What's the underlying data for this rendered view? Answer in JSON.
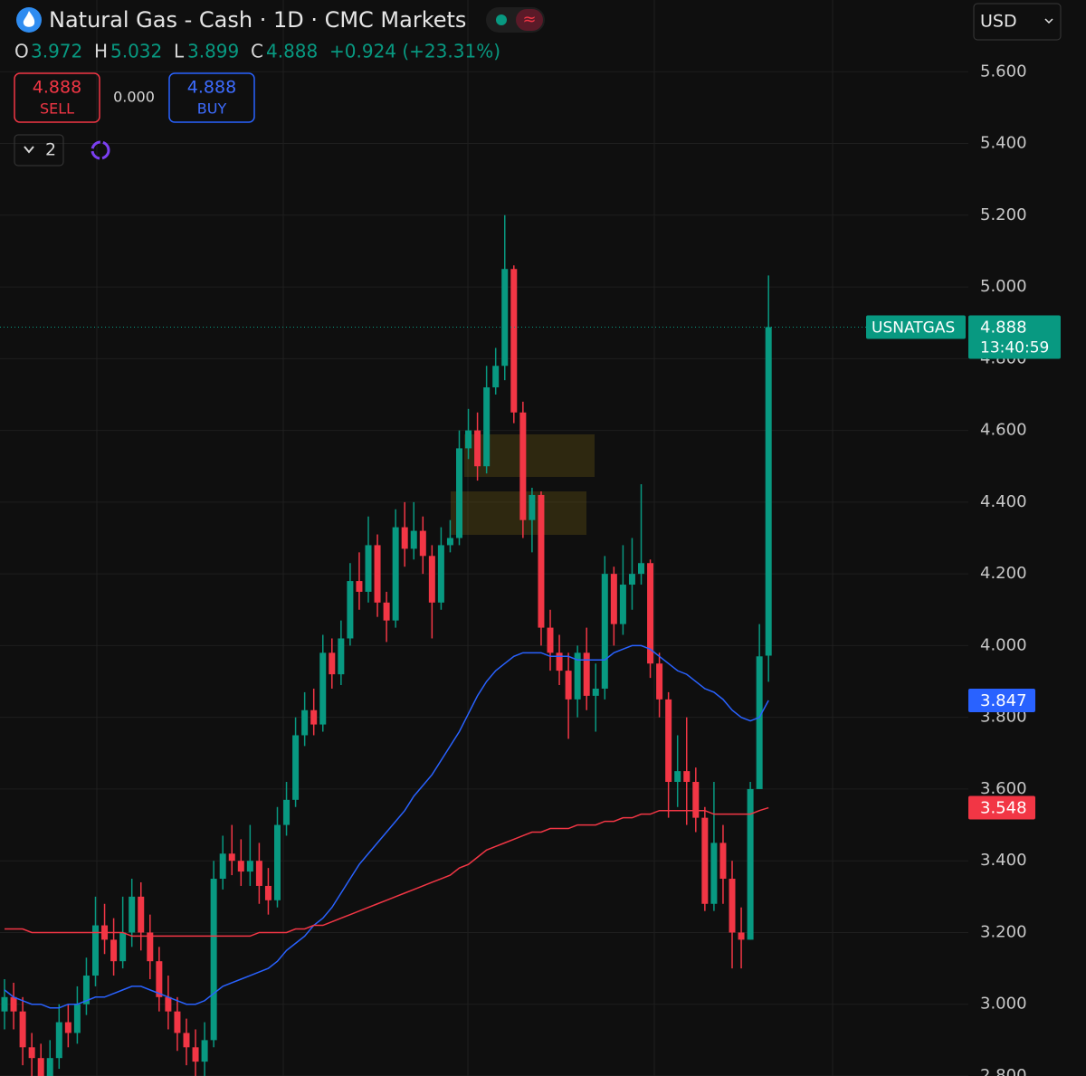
{
  "header": {
    "title": "Natural Gas - Cash · 1D · CMC Markets",
    "ohlc_labels": [
      "O",
      "H",
      "L",
      "C"
    ],
    "change": "+0.924 (+23.31%)",
    "sell": 4.888,
    "sell_label": "SELL",
    "spread": "0.000",
    "buy": 4.888,
    "buy_label": "BUY",
    "indicator_count": 2,
    "currency": "USD"
  },
  "chart_data": {
    "type": "candlestick",
    "symbol": "USNATGAS",
    "countdown": "13:40:59",
    "up_color": "#089981",
    "down_color": "#f23645",
    "open": [
      2.98,
      3.02,
      2.98,
      2.88,
      2.85,
      2.8,
      2.85,
      2.95,
      2.92,
      3.0,
      3.08,
      3.22,
      3.18,
      3.12,
      3.2,
      3.3,
      3.2,
      3.12,
      3.02,
      2.98,
      2.92,
      2.88,
      2.84,
      2.9,
      3.35,
      3.42,
      3.4,
      3.37,
      3.4,
      3.33,
      3.29,
      3.5,
      3.57,
      3.75,
      3.82,
      3.78,
      3.98,
      3.92,
      4.02,
      4.18,
      4.15,
      4.28,
      4.12,
      4.07,
      4.33,
      4.27,
      4.32,
      4.25,
      4.12,
      4.28,
      4.3,
      4.55,
      4.6,
      4.5,
      4.72,
      4.78,
      5.05,
      4.65,
      4.35,
      4.42,
      4.05,
      3.98,
      3.93,
      3.85,
      3.98,
      3.86,
      3.88,
      4.2,
      4.06,
      4.17,
      4.2,
      4.23,
      3.95,
      3.85,
      3.62,
      3.65,
      3.62,
      3.52,
      3.28,
      3.45,
      3.35,
      3.2,
      3.18,
      3.6,
      3.972
    ],
    "high": [
      3.07,
      3.06,
      3.02,
      2.92,
      2.89,
      2.9,
      3.0,
      3.0,
      3.05,
      3.13,
      3.3,
      3.28,
      3.24,
      3.3,
      3.35,
      3.34,
      3.25,
      3.16,
      3.08,
      3.02,
      2.96,
      2.93,
      2.95,
      3.4,
      3.47,
      3.5,
      3.46,
      3.5,
      3.45,
      3.38,
      3.55,
      3.62,
      3.8,
      3.87,
      3.88,
      4.03,
      4.02,
      4.07,
      4.23,
      4.26,
      4.36,
      4.31,
      4.15,
      4.38,
      4.4,
      4.4,
      4.36,
      4.28,
      4.33,
      4.35,
      4.6,
      4.66,
      4.65,
      4.78,
      4.83,
      5.2,
      5.06,
      4.68,
      4.44,
      4.43,
      4.1,
      4.03,
      3.98,
      4.0,
      4.05,
      3.95,
      4.25,
      4.22,
      4.28,
      4.3,
      4.45,
      4.24,
      3.98,
      3.87,
      3.75,
      3.8,
      3.66,
      3.55,
      3.62,
      3.5,
      3.4,
      3.27,
      3.62,
      4.06,
      5.032
    ],
    "low": [
      2.93,
      2.93,
      2.83,
      2.8,
      2.76,
      2.76,
      2.82,
      2.88,
      2.89,
      2.97,
      3.05,
      3.14,
      3.08,
      3.1,
      3.16,
      3.15,
      3.07,
      2.98,
      2.93,
      2.87,
      2.83,
      2.79,
      2.8,
      2.88,
      3.32,
      3.36,
      3.33,
      3.33,
      3.28,
      3.25,
      3.27,
      3.47,
      3.55,
      3.72,
      3.75,
      3.76,
      3.88,
      3.89,
      4.0,
      4.1,
      4.12,
      4.08,
      4.01,
      4.05,
      4.22,
      4.24,
      4.2,
      4.02,
      4.1,
      4.26,
      4.28,
      4.52,
      4.46,
      4.48,
      4.7,
      4.74,
      4.62,
      4.3,
      4.26,
      4.0,
      3.93,
      3.89,
      3.74,
      3.8,
      3.82,
      3.76,
      3.85,
      4.0,
      4.03,
      4.1,
      4.17,
      3.91,
      3.8,
      3.52,
      3.55,
      3.5,
      3.48,
      3.26,
      3.26,
      3.28,
      3.1,
      3.1,
      3.18,
      3.6,
      3.899
    ],
    "close": [
      3.02,
      2.98,
      2.88,
      2.85,
      2.8,
      2.85,
      2.95,
      2.92,
      3.0,
      3.08,
      3.22,
      3.18,
      3.12,
      3.2,
      3.3,
      3.2,
      3.12,
      3.02,
      2.98,
      2.92,
      2.88,
      2.84,
      2.9,
      3.35,
      3.42,
      3.4,
      3.37,
      3.4,
      3.33,
      3.29,
      3.5,
      3.57,
      3.75,
      3.82,
      3.78,
      3.98,
      3.92,
      4.02,
      4.18,
      4.15,
      4.28,
      4.12,
      4.07,
      4.33,
      4.27,
      4.32,
      4.25,
      4.12,
      4.28,
      4.3,
      4.55,
      4.6,
      4.5,
      4.72,
      4.78,
      5.05,
      4.65,
      4.35,
      4.42,
      4.05,
      3.98,
      3.93,
      3.85,
      3.98,
      3.86,
      3.88,
      4.2,
      4.06,
      4.17,
      4.2,
      4.23,
      3.95,
      3.85,
      3.62,
      3.65,
      3.62,
      3.52,
      3.28,
      3.45,
      3.35,
      3.2,
      3.18,
      3.6,
      3.97,
      4.888
    ],
    "ma_fast": {
      "color": "#2962ff",
      "values": [
        3.04,
        3.02,
        3.01,
        3.0,
        3.0,
        2.99,
        2.99,
        3.0,
        3.0,
        3.01,
        3.02,
        3.02,
        3.03,
        3.04,
        3.05,
        3.05,
        3.04,
        3.03,
        3.02,
        3.01,
        3.0,
        3.0,
        3.01,
        3.03,
        3.05,
        3.06,
        3.07,
        3.08,
        3.09,
        3.1,
        3.12,
        3.15,
        3.17,
        3.19,
        3.22,
        3.24,
        3.27,
        3.31,
        3.35,
        3.39,
        3.42,
        3.45,
        3.48,
        3.51,
        3.54,
        3.58,
        3.61,
        3.64,
        3.68,
        3.72,
        3.76,
        3.81,
        3.86,
        3.9,
        3.93,
        3.95,
        3.97,
        3.98,
        3.98,
        3.98,
        3.97,
        3.97,
        3.97,
        3.96,
        3.96,
        3.96,
        3.96,
        3.98,
        3.99,
        4.0,
        4.0,
        3.99,
        3.97,
        3.95,
        3.93,
        3.92,
        3.9,
        3.88,
        3.87,
        3.85,
        3.82,
        3.8,
        3.79,
        3.8,
        3.847
      ]
    },
    "ma_slow": {
      "color": "#f23645",
      "values": [
        3.21,
        3.21,
        3.21,
        3.2,
        3.2,
        3.2,
        3.2,
        3.2,
        3.2,
        3.2,
        3.2,
        3.2,
        3.2,
        3.2,
        3.19,
        3.19,
        3.19,
        3.19,
        3.19,
        3.19,
        3.19,
        3.19,
        3.19,
        3.19,
        3.19,
        3.19,
        3.19,
        3.19,
        3.2,
        3.2,
        3.2,
        3.2,
        3.21,
        3.21,
        3.22,
        3.22,
        3.23,
        3.24,
        3.25,
        3.26,
        3.27,
        3.28,
        3.29,
        3.3,
        3.31,
        3.32,
        3.33,
        3.34,
        3.35,
        3.36,
        3.38,
        3.39,
        3.41,
        3.43,
        3.44,
        3.45,
        3.46,
        3.47,
        3.48,
        3.48,
        3.49,
        3.49,
        3.49,
        3.5,
        3.5,
        3.5,
        3.51,
        3.51,
        3.52,
        3.52,
        3.53,
        3.53,
        3.54,
        3.54,
        3.54,
        3.54,
        3.54,
        3.54,
        3.53,
        3.53,
        3.53,
        3.53,
        3.53,
        3.54,
        3.548
      ]
    },
    "ylim": [
      2.8,
      5.8
    ],
    "yticks": [
      {
        "value": 2.8,
        "label": "2.800"
      },
      {
        "value": 3.0,
        "label": "3.000"
      },
      {
        "value": 3.2,
        "label": "3.200"
      },
      {
        "value": 3.4,
        "label": "3.400"
      },
      {
        "value": 3.6,
        "label": "3.600"
      },
      {
        "value": 3.8,
        "label": "3.800"
      },
      {
        "value": 4.0,
        "label": "4.000"
      },
      {
        "value": 4.2,
        "label": "4.200"
      },
      {
        "value": 4.4,
        "label": "4.400"
      },
      {
        "value": 4.6,
        "label": "4.600"
      },
      {
        "value": 4.8,
        "label": "4.800"
      },
      {
        "value": 5.0,
        "label": "5.000"
      },
      {
        "value": 5.2,
        "label": "5.200"
      },
      {
        "value": 5.4,
        "label": "5.400"
      },
      {
        "value": 5.6,
        "label": "5.600"
      }
    ],
    "grid": true
  }
}
